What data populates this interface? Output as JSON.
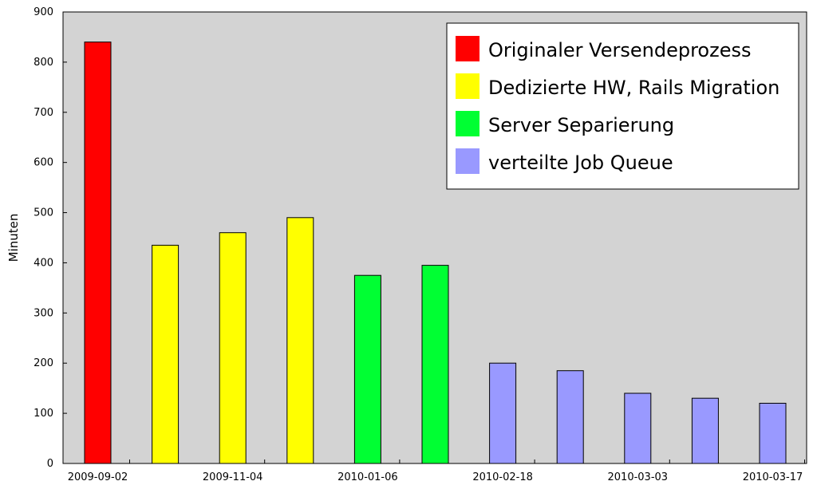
{
  "chart_data": {
    "type": "bar",
    "title": "",
    "xlabel": "",
    "ylabel": "Minuten",
    "ylim": [
      0,
      900
    ],
    "yticks": [
      0,
      100,
      200,
      300,
      400,
      500,
      600,
      700,
      800,
      900
    ],
    "grid": false,
    "legend_position": "top-right",
    "xtick_labels": [
      "2009-09-02",
      "2009-11-04",
      "2010-01-06",
      "2010-02-18",
      "2010-03-03",
      "2010-03-17"
    ],
    "series": [
      {
        "name": "Originaler Versendeprozess",
        "color": "#ff0000",
        "slots": [
          0
        ],
        "values": [
          840
        ]
      },
      {
        "name": "Dedizierte HW, Rails Migration",
        "color": "#ffff00",
        "slots": [
          1,
          2,
          3
        ],
        "values": [
          435,
          460,
          490
        ]
      },
      {
        "name": "Server Separierung",
        "color": "#00ff33",
        "slots": [
          4,
          5
        ],
        "values": [
          375,
          395
        ]
      },
      {
        "name": "verteilte Job Queue",
        "color": "#9999ff",
        "slots": [
          6,
          7,
          8,
          9,
          10
        ],
        "values": [
          200,
          185,
          140,
          130,
          120
        ]
      }
    ],
    "colors": {
      "plot_background": "#d3d3d3",
      "axis": "#000000",
      "bar_edge": "#000000"
    }
  }
}
